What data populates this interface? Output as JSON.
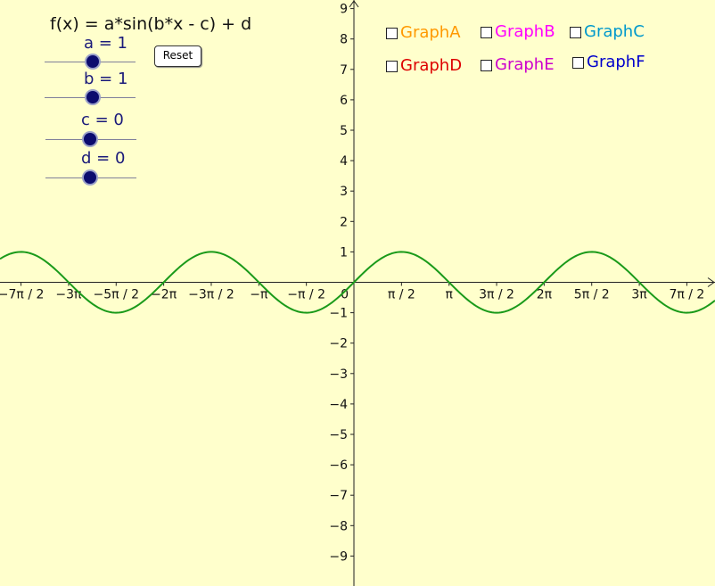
{
  "formula": "f(x) = a*sin(b*x - c) + d",
  "sliders": [
    {
      "label": "a = 1",
      "value": 1
    },
    {
      "label": "b = 1",
      "value": 1
    },
    {
      "label": "c = 0",
      "value": 0
    },
    {
      "label": "d = 0",
      "value": 0
    }
  ],
  "reset_label": "Reset",
  "checkboxes": [
    {
      "label": "GraphA",
      "color": "#ff9900",
      "checked": false
    },
    {
      "label": "GraphB",
      "color": "#ff00ff",
      "checked": false
    },
    {
      "label": "GraphC",
      "color": "#0099cc",
      "checked": false
    },
    {
      "label": "GraphD",
      "color": "#dd0000",
      "checked": false
    },
    {
      "label": "GraphE",
      "color": "#cc00cc",
      "checked": false
    },
    {
      "label": "GraphF",
      "color": "#0000cc",
      "checked": false
    }
  ],
  "chart_data": {
    "type": "line",
    "function": "sin(x)",
    "series": [
      {
        "color": "#1a9a1a"
      }
    ],
    "xlim": [
      -11.9,
      12.6
    ],
    "ylim": [
      -10.0,
      9.5
    ],
    "x_ticks": [
      {
        "value": -10.9956,
        "label": "−7π / 2"
      },
      {
        "value": -9.4248,
        "label": "−3π"
      },
      {
        "value": -7.854,
        "label": "−5π / 2"
      },
      {
        "value": -6.2832,
        "label": "−2π"
      },
      {
        "value": -4.7124,
        "label": "−3π / 2"
      },
      {
        "value": -3.1416,
        "label": "−π"
      },
      {
        "value": -1.5708,
        "label": "−π / 2"
      },
      {
        "value": 1.5708,
        "label": "π / 2"
      },
      {
        "value": 3.1416,
        "label": "π"
      },
      {
        "value": 4.7124,
        "label": "3π / 2"
      },
      {
        "value": 6.2832,
        "label": "2π"
      },
      {
        "value": 7.854,
        "label": "5π / 2"
      },
      {
        "value": 9.4248,
        "label": "3π"
      },
      {
        "value": 10.9956,
        "label": "7π / 2"
      }
    ],
    "origin_label": "0",
    "y_ticks": [
      {
        "value": 9,
        "label": "9"
      },
      {
        "value": 8,
        "label": "8"
      },
      {
        "value": 7,
        "label": "7"
      },
      {
        "value": 6,
        "label": "6"
      },
      {
        "value": 5,
        "label": "5"
      },
      {
        "value": 4,
        "label": "4"
      },
      {
        "value": 3,
        "label": "3"
      },
      {
        "value": 2,
        "label": "2"
      },
      {
        "value": 1,
        "label": "1"
      },
      {
        "value": -1,
        "label": "−1"
      },
      {
        "value": -2,
        "label": "−2"
      },
      {
        "value": -3,
        "label": "−3"
      },
      {
        "value": -4,
        "label": "−4"
      },
      {
        "value": -5,
        "label": "−5"
      },
      {
        "value": -6,
        "label": "−6"
      },
      {
        "value": -7,
        "label": "−7"
      },
      {
        "value": -8,
        "label": "−8"
      },
      {
        "value": -9,
        "label": "−9"
      }
    ],
    "grid": false,
    "legend": "none"
  }
}
